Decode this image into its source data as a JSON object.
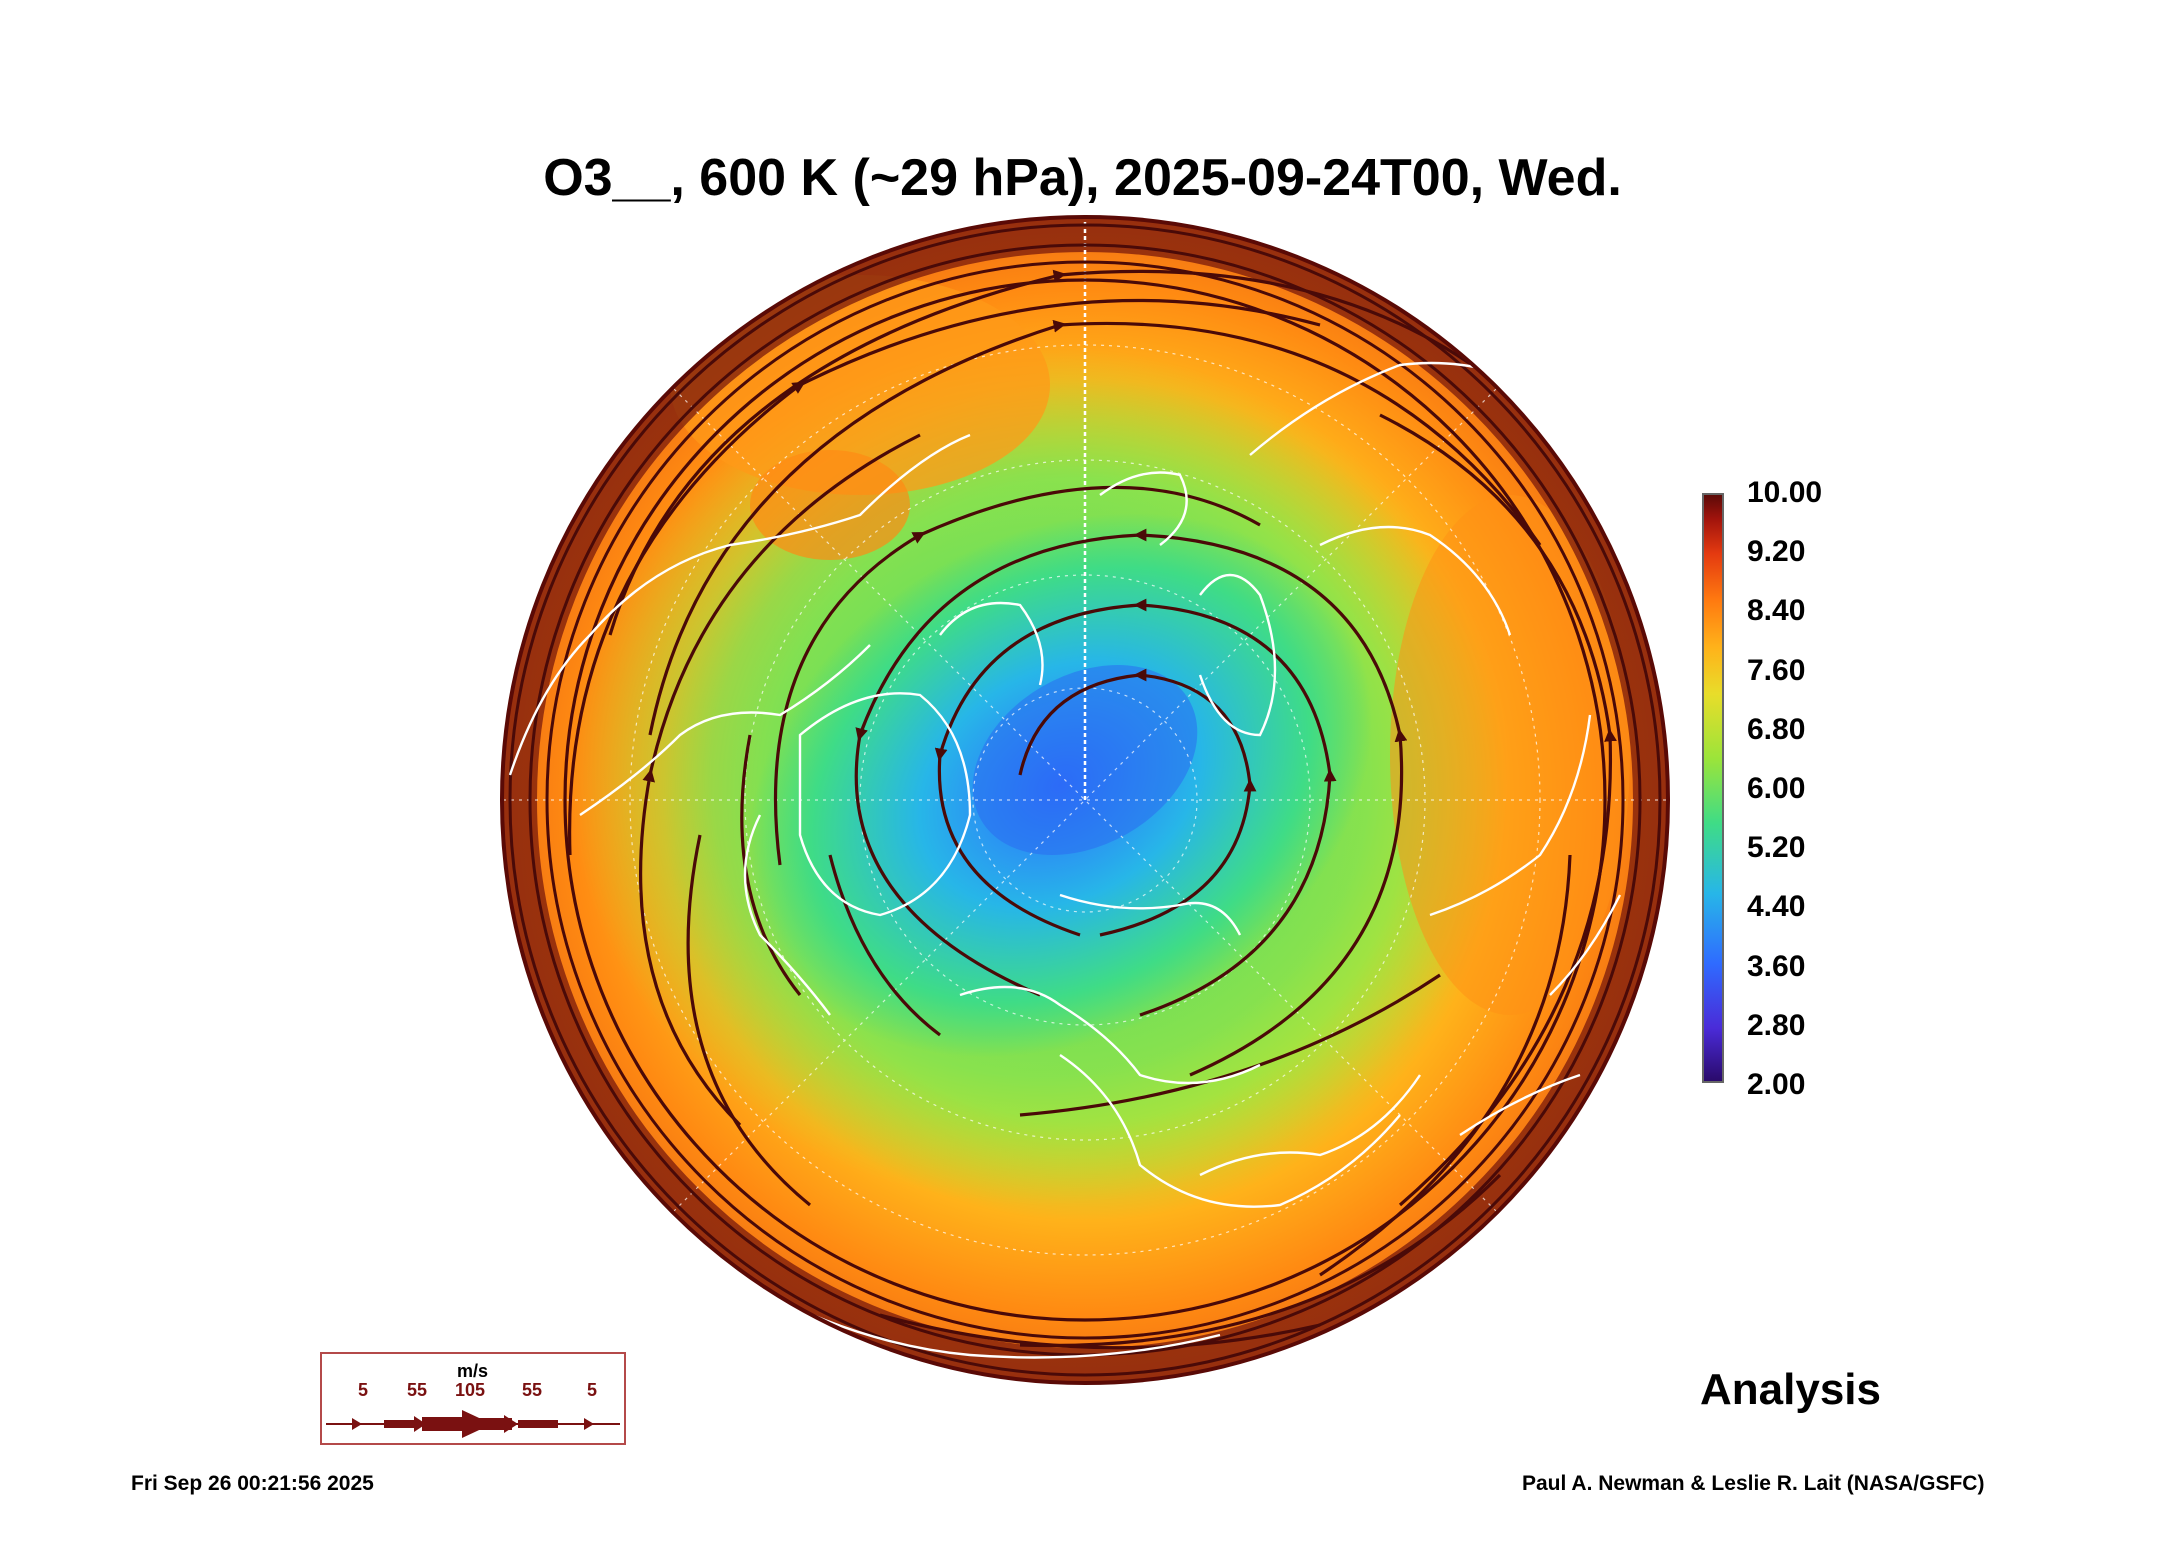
{
  "title": "O3__, 600 K (~29 hPa), 2025-09-24T00, Wed.",
  "colorbar": {
    "ticks": [
      "10.00",
      "9.20",
      "8.40",
      "7.60",
      "6.80",
      "6.00",
      "5.20",
      "4.40",
      "3.60",
      "2.80",
      "2.00"
    ],
    "range": [
      2.0,
      10.0
    ],
    "colors": [
      "#2a0a6b",
      "#4a2bd8",
      "#2f6bff",
      "#27b6e8",
      "#3fdc86",
      "#9be43a",
      "#e8dd2a",
      "#ffb21a",
      "#ff7a10",
      "#e43a10",
      "#a0130c",
      "#5c0a08"
    ]
  },
  "wind_legend": {
    "unit": "m/s",
    "labels": [
      "5",
      "55",
      "105",
      "55",
      "5"
    ],
    "color": "#6b0f0f"
  },
  "mode_label": "Analysis",
  "timestamp": "Fri Sep 26 00:21:56 2025",
  "credits": "Paul A. Newman & Leslie R. Lait (NASA/GSFC)"
}
